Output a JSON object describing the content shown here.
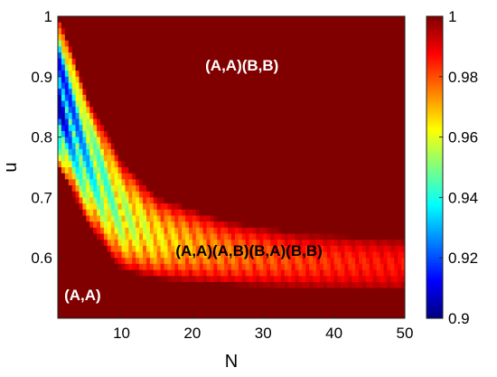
{
  "chart_data": {
    "type": "heatmap",
    "title": "",
    "xlabel": "N",
    "ylabel": "u",
    "xlim": [
      1,
      50
    ],
    "ylim": [
      0.5,
      1.0
    ],
    "x_ticks": [
      10,
      20,
      30,
      40,
      50
    ],
    "y_ticks": [
      0.6,
      0.7,
      0.8,
      0.9,
      1.0
    ],
    "x_tick_labels": [
      "10",
      "20",
      "30",
      "40",
      "50"
    ],
    "y_tick_labels": [
      "0.6",
      "0.7",
      "0.8",
      "0.9",
      "1"
    ],
    "colorbar": {
      "min": 0.9,
      "max": 1.0,
      "ticks": [
        0.9,
        0.92,
        0.94,
        0.96,
        0.98,
        1.0
      ],
      "tick_labels": [
        "0.9",
        "0.92",
        "0.94",
        "0.96",
        "0.98",
        "1"
      ],
      "colormap": "jet"
    },
    "region_labels": [
      {
        "text": "(A,A)(B,B)",
        "x": 27,
        "y": 0.91,
        "color": "#ffffff"
      },
      {
        "text": "(A,A)(A,B)(B,A)(B,B)",
        "x": 28,
        "y": 0.603,
        "color": "#000000"
      },
      {
        "text": "(A,A)",
        "x": 4.5,
        "y": 0.53,
        "color": "#ffffff"
      }
    ],
    "band": {
      "lower_edge": [
        [
          1,
          0.75
        ],
        [
          3,
          0.71
        ],
        [
          5,
          0.66
        ],
        [
          10,
          0.58
        ],
        [
          15,
          0.565
        ],
        [
          25,
          0.555
        ],
        [
          35,
          0.55
        ],
        [
          50,
          0.545
        ]
      ],
      "upper_edge": [
        [
          1,
          1.0
        ],
        [
          3,
          0.94
        ],
        [
          5,
          0.87
        ],
        [
          10,
          0.76
        ],
        [
          15,
          0.7
        ],
        [
          25,
          0.66
        ],
        [
          35,
          0.64
        ],
        [
          50,
          0.63
        ]
      ],
      "min_value_approx": 0.905
    },
    "grid": false,
    "legend": "none"
  }
}
